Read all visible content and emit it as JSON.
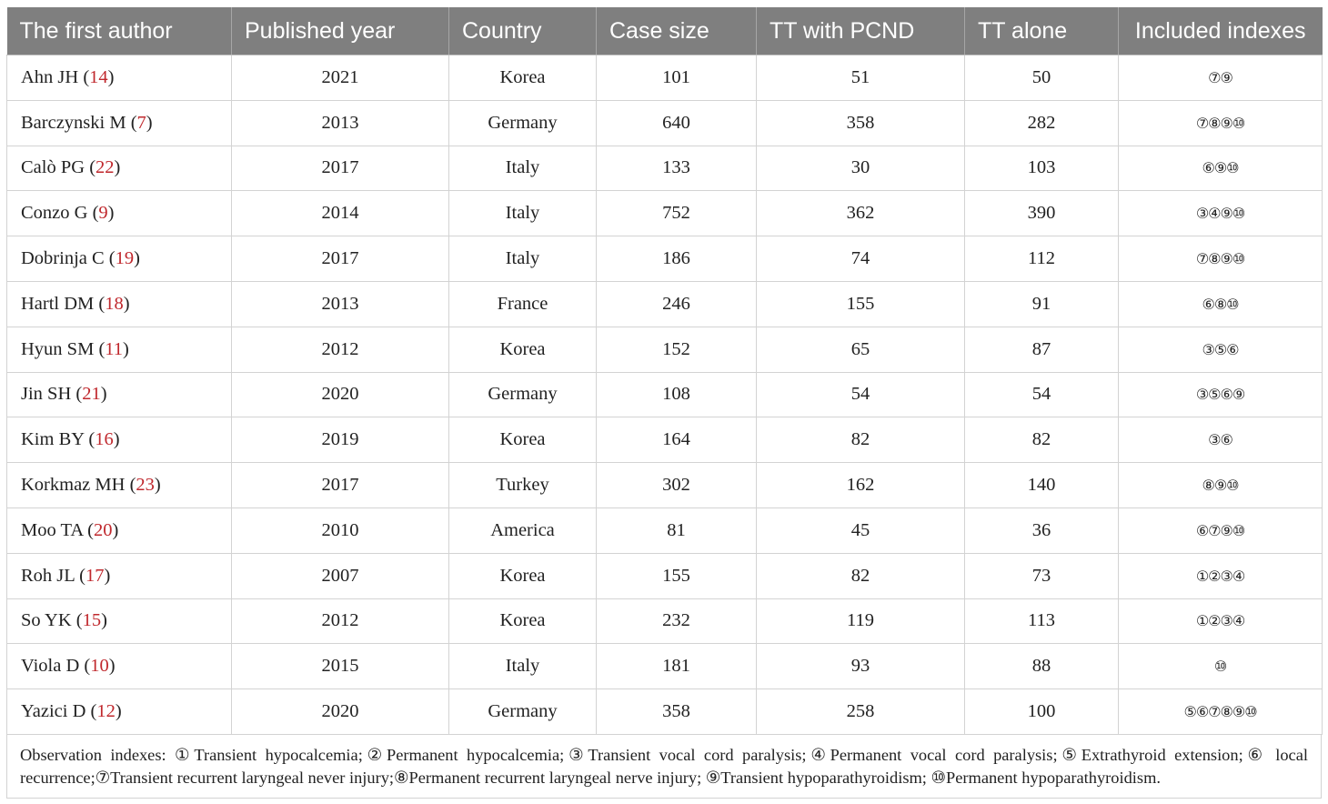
{
  "headers": [
    "The first author",
    "Published year",
    "Country",
    "Case size",
    "TT with PCND",
    "TT alone",
    "Included indexes"
  ],
  "rows": [
    {
      "author": "Ahn JH",
      "ref": "14",
      "year": "2021",
      "country": "Korea",
      "case_size": "101",
      "tt_pcnd": "51",
      "tt_alone": "50",
      "indexes": "⑦⑨"
    },
    {
      "author": "Barczynski M",
      "ref": "7",
      "year": "2013",
      "country": "Germany",
      "case_size": "640",
      "tt_pcnd": "358",
      "tt_alone": "282",
      "indexes": "⑦⑧⑨⑩"
    },
    {
      "author": "Calò PG",
      "ref": "22",
      "year": "2017",
      "country": "Italy",
      "case_size": "133",
      "tt_pcnd": "30",
      "tt_alone": "103",
      "indexes": "⑥⑨⑩"
    },
    {
      "author": "Conzo G",
      "ref": "9",
      "year": "2014",
      "country": "Italy",
      "case_size": "752",
      "tt_pcnd": "362",
      "tt_alone": "390",
      "indexes": "③④⑨⑩"
    },
    {
      "author": "Dobrinja C",
      "ref": "19",
      "year": "2017",
      "country": "Italy",
      "case_size": "186",
      "tt_pcnd": "74",
      "tt_alone": "112",
      "indexes": "⑦⑧⑨⑩"
    },
    {
      "author": "Hartl DM",
      "ref": "18",
      "year": "2013",
      "country": "France",
      "case_size": "246",
      "tt_pcnd": "155",
      "tt_alone": "91",
      "indexes": "⑥⑧⑩"
    },
    {
      "author": "Hyun SM",
      "ref": "11",
      "year": "2012",
      "country": "Korea",
      "case_size": "152",
      "tt_pcnd": "65",
      "tt_alone": "87",
      "indexes": "③⑤⑥"
    },
    {
      "author": "Jin SH",
      "ref": "21",
      "year": "2020",
      "country": "Germany",
      "case_size": "108",
      "tt_pcnd": "54",
      "tt_alone": "54",
      "indexes": "③⑤⑥⑨"
    },
    {
      "author": "Kim BY",
      "ref": "16",
      "year": "2019",
      "country": "Korea",
      "case_size": "164",
      "tt_pcnd": "82",
      "tt_alone": "82",
      "indexes": "③⑥"
    },
    {
      "author": "Korkmaz MH",
      "ref": "23",
      "year": "2017",
      "country": "Turkey",
      "case_size": "302",
      "tt_pcnd": "162",
      "tt_alone": "140",
      "indexes": "⑧⑨⑩"
    },
    {
      "author": "Moo TA",
      "ref": "20",
      "year": "2010",
      "country": "America",
      "case_size": "81",
      "tt_pcnd": "45",
      "tt_alone": "36",
      "indexes": "⑥⑦⑨⑩"
    },
    {
      "author": "Roh JL",
      "ref": "17",
      "year": "2007",
      "country": "Korea",
      "case_size": "155",
      "tt_pcnd": "82",
      "tt_alone": "73",
      "indexes": "①②③④"
    },
    {
      "author": "So YK",
      "ref": "15",
      "year": "2012",
      "country": "Korea",
      "case_size": "232",
      "tt_pcnd": "119",
      "tt_alone": "113",
      "indexes": "①②③④"
    },
    {
      "author": "Viola D",
      "ref": "10",
      "year": "2015",
      "country": "Italy",
      "case_size": "181",
      "tt_pcnd": "93",
      "tt_alone": "88",
      "indexes": "⑩"
    },
    {
      "author": "Yazici D",
      "ref": "12",
      "year": "2020",
      "country": "Germany",
      "case_size": "358",
      "tt_pcnd": "258",
      "tt_alone": "100",
      "indexes": "⑤⑥⑦⑧⑨⑩"
    }
  ],
  "footnote": "Observation indexes: ①Transient hypocalcemia;②Permanent hypocalcemia;③Transient vocal cord paralysis;④Permanent vocal cord paralysis;⑤Extrathyroid extension;⑥ local recurrence;⑦Transient recurrent laryngeal never injury;⑧Permanent recurrent laryngeal nerve injury; ⑨Transient hypoparathyroidism; ⑩Permanent hypoparathyroidism.",
  "colors": {
    "header_bg": "#7f7f7f",
    "header_text": "#ffffff",
    "ref_link": "#c0282d",
    "grid": "#d3d3d3"
  }
}
